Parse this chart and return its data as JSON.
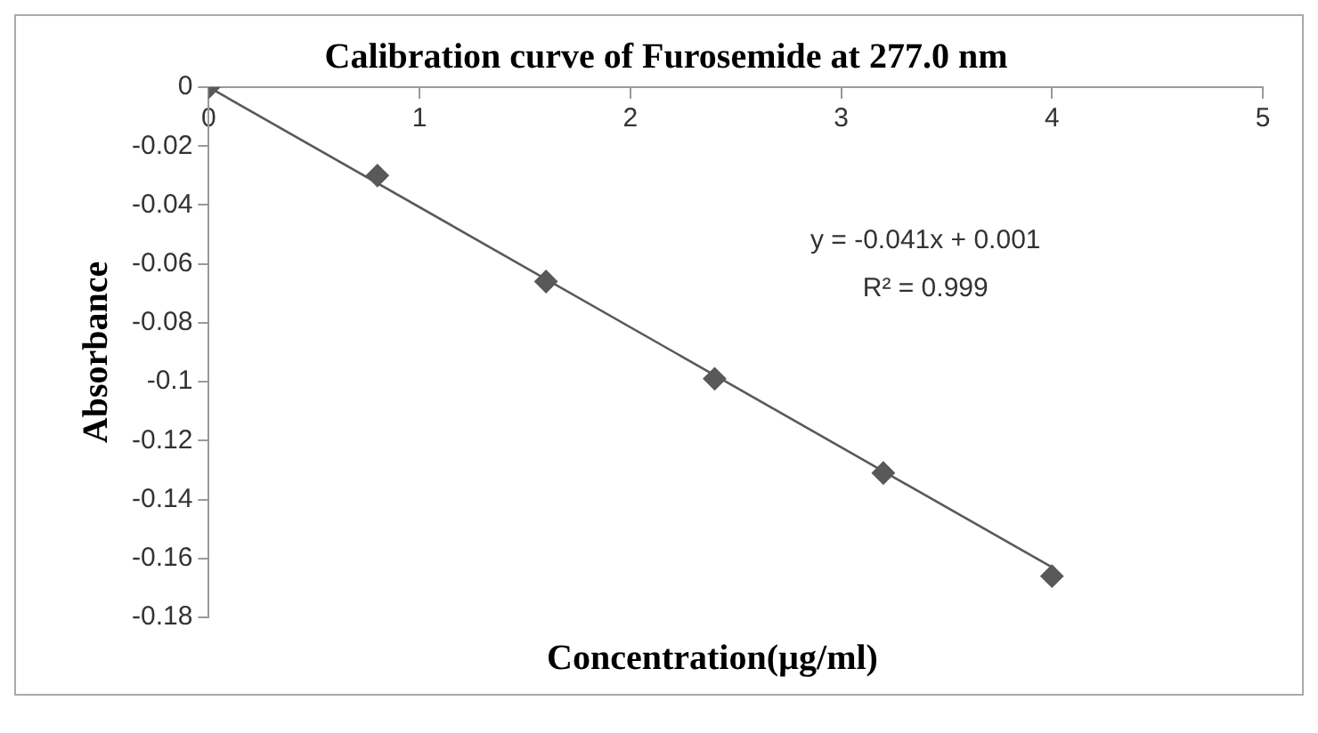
{
  "chart_data": {
    "type": "scatter",
    "title": "Calibration curve of Furosemide at 277.0 nm",
    "xlabel": "Concentration(µg/ml)",
    "ylabel": "Absorbance",
    "x": [
      0,
      0.8,
      1.6,
      2.4,
      3.2,
      4
    ],
    "series": [
      {
        "color": "#595959",
        "values": [
          0,
          -0.03,
          -0.066,
          -0.099,
          -0.131,
          -0.166
        ],
        "marker": "diamond"
      },
      {
        "type": "line",
        "color": "#595959",
        "x": [
          0,
          4
        ],
        "values": [
          0,
          -0.163
        ],
        "marker": "none",
        "line_style": "solid"
      }
    ],
    "xlim": [
      0,
      5
    ],
    "xticks": [
      0,
      1,
      2,
      3,
      4,
      5
    ],
    "ylim": [
      -0.18,
      0
    ],
    "yticks": [
      0,
      -0.02,
      -0.04,
      -0.06,
      -0.08,
      -0.1,
      -0.12,
      -0.14,
      -0.16,
      -0.18
    ],
    "grid": false,
    "legend": false,
    "annotations": [
      "y = -0.041x + 0.001",
      "R² = 0.999"
    ]
  }
}
